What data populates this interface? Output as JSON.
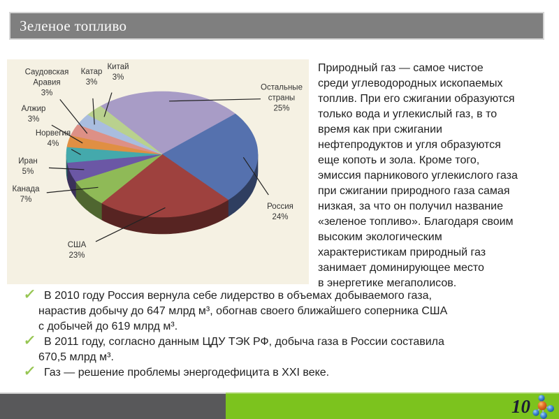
{
  "slide": {
    "title": "Зеленое топливо"
  },
  "paragraph": {
    "text": "Природный газ — самое чистое\nсреди углеводородных ископаемых\nтоплив. При его сжигании образуются\nтолько вода и углекислый газ, в то\nвремя как при сжигании\nнефтепродуктов и угля образуются\nеще копоть и зола. Кроме того,\nэмиссия парникового углекислого газа\nпри сжигании природного газа самая\nнизкая, за что он получил название\n«зеленое топливо». Благодаря своим\nвысоким экологическим\nхарактеристикам природный газ\nзанимает доминирующее место\nв энергетике мегаполисов."
  },
  "bullets": {
    "items": [
      {
        "text": "В 2010 году Россия вернула себе лидерство в объемах добываемого газа,\nнарастив добычу до 647 млрд м³, обогнав своего ближайшего соперника США\nс добычей до 619 млрд м³."
      },
      {
        "text": "В 2011 году, согласно данным ЦДУ ТЭК РФ, добыча газа в России составила\n670,5 млрд м³."
      },
      {
        "text": "Газ — решение проблемы энергодефицита в XXI веке."
      }
    ],
    "check_icon": "✓"
  },
  "chart_data": {
    "type": "pie",
    "style": "3d",
    "unit": "%",
    "title": "",
    "legend": "none",
    "labels_show": "name_and_percent",
    "start_angle_deg": -40,
    "slices": [
      {
        "key": "others",
        "label": "Остальные\nстраны",
        "value": 25,
        "color": "#a89cc6"
      },
      {
        "key": "russia",
        "label": "Россия",
        "value": 24,
        "color": "#5571ae"
      },
      {
        "key": "usa",
        "label": "США",
        "value": 23,
        "color": "#9e413e"
      },
      {
        "key": "canada",
        "label": "Канада",
        "value": 7,
        "color": "#8fba57"
      },
      {
        "key": "iran",
        "label": "Иран",
        "value": 5,
        "color": "#6b57a5"
      },
      {
        "key": "norway",
        "label": "Норвегия",
        "value": 4,
        "color": "#44a9ac"
      },
      {
        "key": "algeria",
        "label": "Алжир",
        "value": 3,
        "color": "#e08f43"
      },
      {
        "key": "saudi",
        "label": "Саудовская\nАравия",
        "value": 3,
        "color": "#dd9086"
      },
      {
        "key": "qatar",
        "label": "Катар",
        "value": 3,
        "color": "#a9bddf"
      },
      {
        "key": "china",
        "label": "Китай",
        "value": 3,
        "color": "#b9d18e"
      }
    ]
  },
  "footer": {
    "page_number": "10",
    "molecule_icon": "methane-molecule"
  },
  "theme": {
    "title_bar_gray": "#7f7f7f",
    "footer_gray": "#58585a",
    "footer_green": "#7cc31e",
    "check_green": "#97c653",
    "chart_background": "#f5f1e3"
  }
}
